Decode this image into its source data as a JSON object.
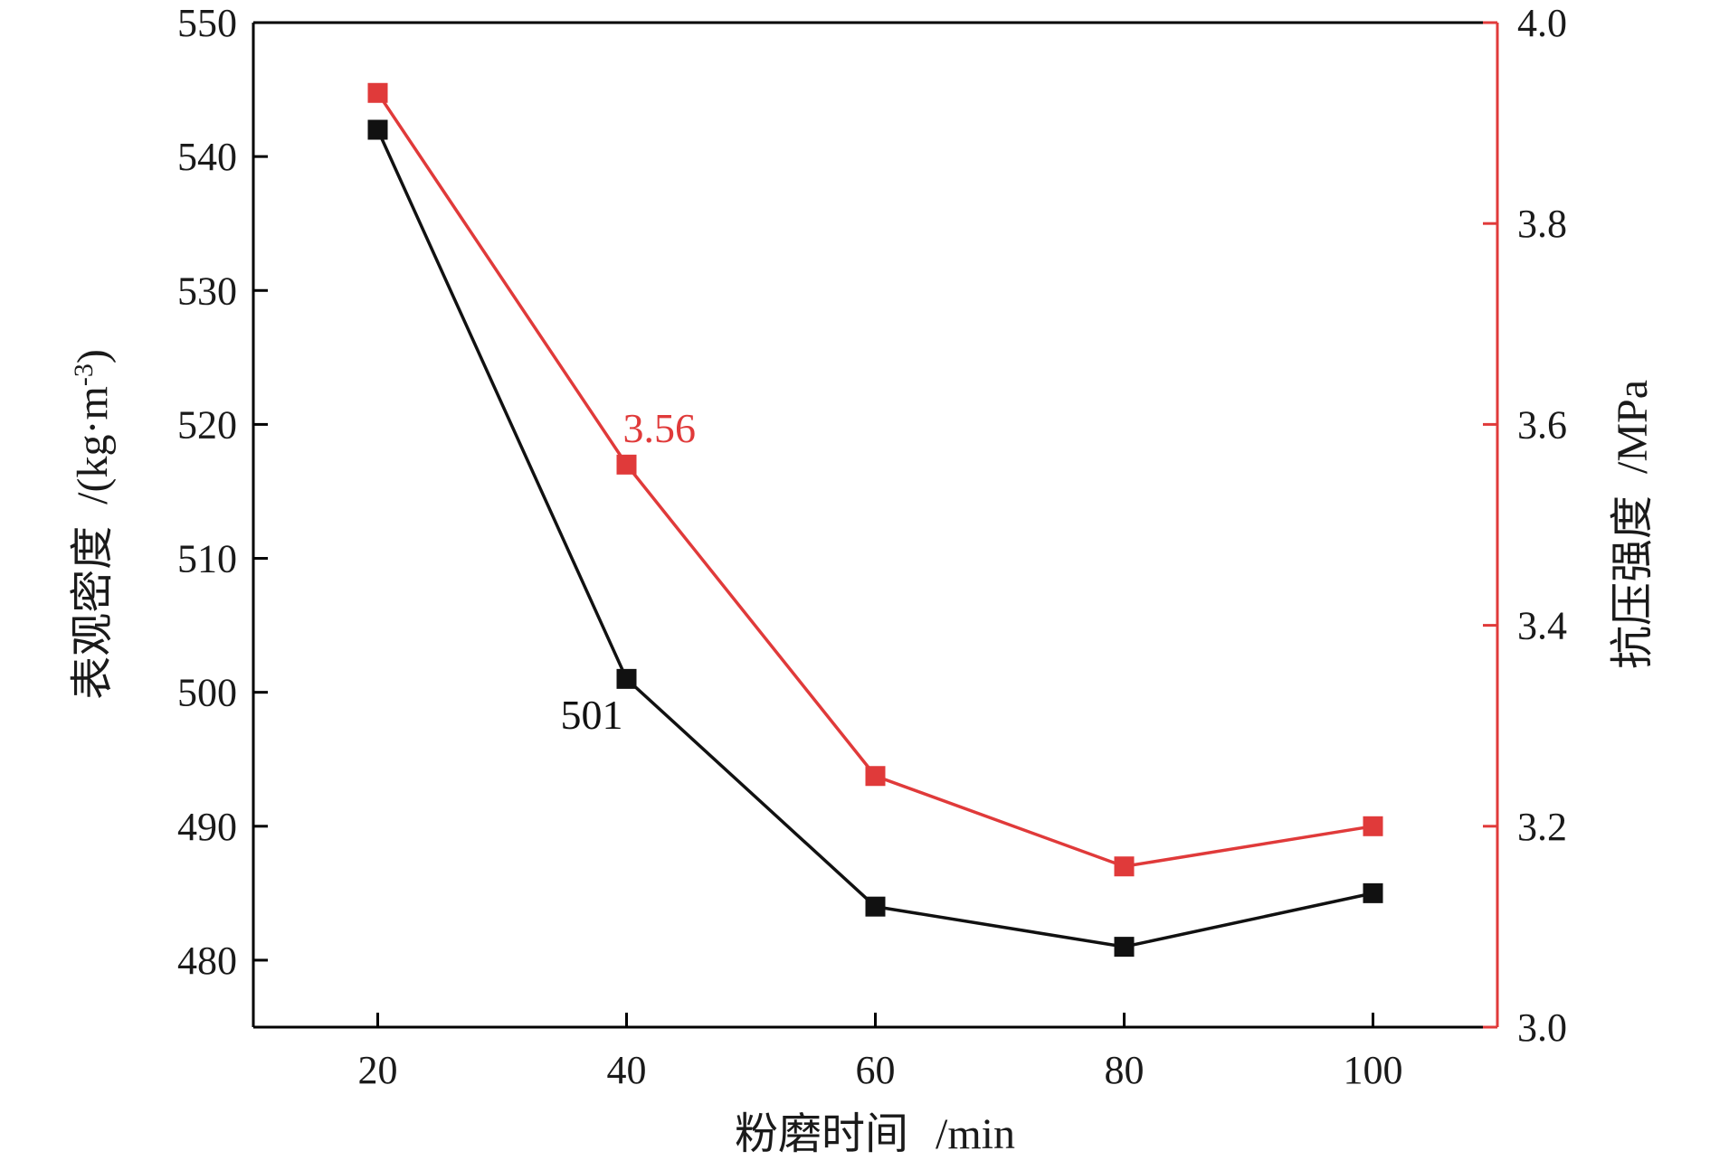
{
  "chart_data": {
    "type": "line",
    "title": "",
    "x": [
      20,
      40,
      60,
      80,
      100
    ],
    "xlim": [
      10,
      110
    ],
    "xticks": [
      "20",
      "40",
      "60",
      "80",
      "100"
    ],
    "xlabel": {
      "text": "粉磨时间",
      "unit": "/min"
    },
    "y_left": {
      "label_text": "表观密度",
      "label_unit_open": "/(kg·m",
      "label_unit_sup": "-3",
      "label_unit_close": ")",
      "ylim": [
        475,
        550
      ],
      "ticks": [
        "480",
        "490",
        "500",
        "510",
        "520",
        "530",
        "540",
        "550"
      ],
      "color": "#000000"
    },
    "y_right": {
      "label_text": "抗压强度",
      "label_unit": "/MPa",
      "ylim": [
        3.0,
        4.0
      ],
      "ticks": [
        "3.0",
        "3.2",
        "3.4",
        "3.6",
        "3.8",
        "4.0"
      ],
      "color": "#e03a3a"
    },
    "series": [
      {
        "axis": "left",
        "color": "#111111",
        "values": [
          542,
          501,
          484,
          481,
          485
        ],
        "annotation": {
          "index": 1,
          "text": "501"
        }
      },
      {
        "axis": "right",
        "color": "#e03a3a",
        "values": [
          3.93,
          3.56,
          3.25,
          3.16,
          3.2
        ],
        "annotation": {
          "index": 1,
          "text": "3.56"
        }
      }
    ],
    "grid": false
  }
}
